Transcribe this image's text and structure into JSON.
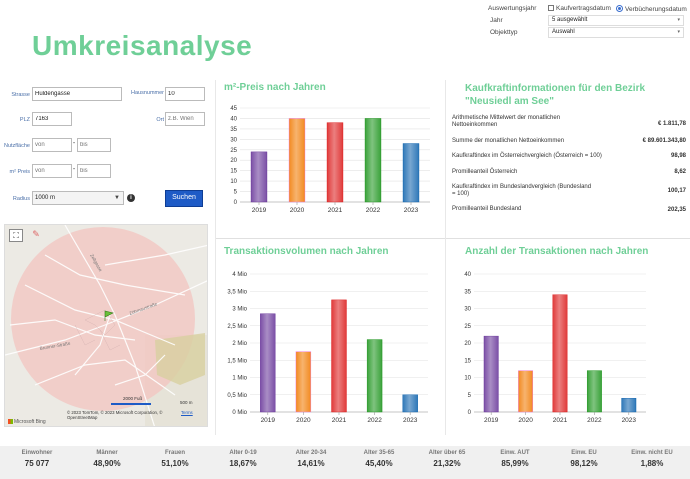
{
  "page": {
    "title": "Umkreisanalyse"
  },
  "filters": {
    "auswertungsjahr_label": "Auswertungsjahr",
    "kaufvertragsdatum_label": "Kaufvertragsdatum",
    "verbuecherungsdatum_label": "Verbücherungsdatum",
    "jahr_label": "Jahr",
    "jahr_value": "5 ausgewählt",
    "objekttyp_label": "Objekttyp",
    "objekttyp_value": "Auswahl"
  },
  "form": {
    "strasse_label": "Strasse",
    "strasse_value": "Huldengasse",
    "hausnummer_label": "Hausnummer",
    "hausnummer_value": "10",
    "plz_label": "PLZ",
    "plz_value": "7163",
    "ort_label": "Ort",
    "ort_placeholder": "z.B. Wien",
    "nutzflaeche_label": "Nutzfläche",
    "von_placeholder": "von",
    "bis_placeholder": "bis",
    "dash": "-",
    "preis_label": "m² Preis",
    "radius_label": "Radius",
    "radius_value": "1000 m",
    "info_icon": "info-icon",
    "search_label": "Suchen"
  },
  "map": {
    "street1": "Zeltgasse",
    "street2": "Zöhmaustraße",
    "street3": "Brunner-Straße",
    "scale_ft": "2000 Fuß",
    "scale_m": "500 m",
    "attribution": "© 2023 TomTom, © 2023 Microsoft Corporation, © OpenStreetMap",
    "terms": "Terms",
    "brand": "Microsoft Bing"
  },
  "headings": {
    "preis": "m²-Preis nach Jahren",
    "kaufkraft": "Kaufkraftinformationen für den Bezirk \"Neusiedl am See\"",
    "transaktionsvolumen": "Transaktionsvolumen nach Jahren",
    "anzahl": "Anzahl der Transaktionen nach Jahren"
  },
  "kaufkraft": [
    {
      "label": "Arithmetische Mittelwert der monatlichen Nettoeinkommen",
      "value": "€ 1.811,78"
    },
    {
      "label": "Summe der monatlichen Nettoeinkommen",
      "value": "€ 89.601.343,80"
    },
    {
      "label": "Kaufkraftindex im Österreichvergleich (Österreich = 100)",
      "value": "98,98"
    },
    {
      "label": "Promilleanteil Österreich",
      "value": "8,62"
    },
    {
      "label": "Kaufkraftindex im Bundeslandvergleich (Bundesland = 100)",
      "value": "100,17"
    },
    {
      "label": "Promilleanteil Bundesland",
      "value": "202,35"
    }
  ],
  "colors": {
    "purple": "#7b4fa6",
    "orange": "#f28a20",
    "red": "#e03a3a",
    "green": "#3aa23a",
    "blue": "#2f78b8",
    "accent": "#6fcf97"
  },
  "chart_data": [
    {
      "type": "bar",
      "title": "m²-Preis nach Jahren",
      "categories": [
        "2019",
        "2020",
        "2021",
        "2022",
        "2023"
      ],
      "values": [
        24,
        40,
        38,
        40,
        28
      ],
      "ylim": [
        0,
        45
      ],
      "yticks": [
        "0",
        "5",
        "10",
        "15",
        "20",
        "25",
        "30",
        "35",
        "40",
        "45"
      ]
    },
    {
      "type": "bar",
      "title": "Transaktionsvolumen nach Jahren",
      "categories": [
        "2019",
        "2020",
        "2021",
        "2022",
        "2023"
      ],
      "values": [
        2.85,
        1.75,
        3.25,
        2.1,
        0.5
      ],
      "ylim": [
        0,
        4
      ],
      "yticks": [
        "0 Mio",
        "0,5 Mio",
        "1 Mio",
        "1,5 Mio",
        "2 Mio",
        "2,5 Mio",
        "3 Mio",
        "3,5 Mio",
        "4 Mio"
      ]
    },
    {
      "type": "bar",
      "title": "Anzahl der Transaktionen nach Jahren",
      "categories": [
        "2019",
        "2020",
        "2021",
        "2022",
        "2023"
      ],
      "values": [
        22,
        12,
        34,
        12,
        4
      ],
      "ylim": [
        0,
        40
      ],
      "yticks": [
        "0",
        "5",
        "10",
        "15",
        "20",
        "25",
        "30",
        "35",
        "40"
      ]
    }
  ],
  "stats": [
    {
      "key": "Einwohner",
      "value": "75 077"
    },
    {
      "key": "Männer",
      "value": "48,90%"
    },
    {
      "key": "Frauen",
      "value": "51,10%"
    },
    {
      "key": "Alter 0-19",
      "value": "18,67%"
    },
    {
      "key": "Alter 20-34",
      "value": "14,61%"
    },
    {
      "key": "Alter 35-65",
      "value": "45,40%"
    },
    {
      "key": "Alter über 65",
      "value": "21,32%"
    },
    {
      "key": "Einw. AUT",
      "value": "85,99%"
    },
    {
      "key": "Einw. EU",
      "value": "98,12%"
    },
    {
      "key": "Einw. nicht EU",
      "value": "1,88%"
    }
  ]
}
